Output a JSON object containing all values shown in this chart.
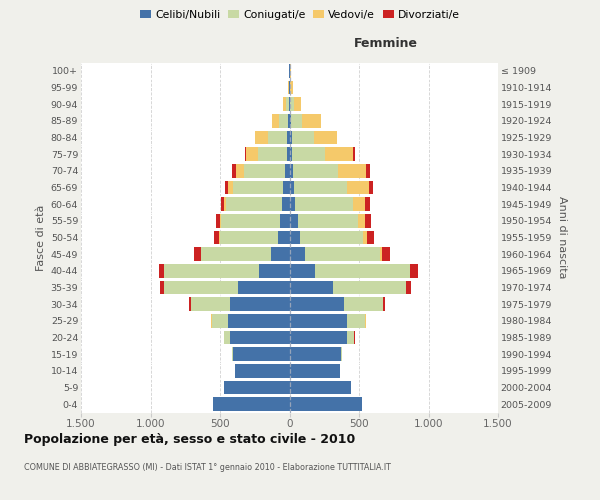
{
  "age_groups": [
    "0-4",
    "5-9",
    "10-14",
    "15-19",
    "20-24",
    "25-29",
    "30-34",
    "35-39",
    "40-44",
    "45-49",
    "50-54",
    "55-59",
    "60-64",
    "65-69",
    "70-74",
    "75-79",
    "80-84",
    "85-89",
    "90-94",
    "95-99",
    "100+"
  ],
  "birth_years": [
    "2005-2009",
    "2000-2004",
    "1995-1999",
    "1990-1994",
    "1985-1989",
    "1980-1984",
    "1975-1979",
    "1970-1974",
    "1965-1969",
    "1960-1964",
    "1955-1959",
    "1950-1954",
    "1945-1949",
    "1940-1944",
    "1935-1939",
    "1930-1934",
    "1925-1929",
    "1920-1924",
    "1915-1919",
    "1910-1914",
    "≤ 1909"
  ],
  "colors": {
    "celibe": "#4472a8",
    "coniugato": "#c8d9a4",
    "vedovo": "#f5c96a",
    "divorziato": "#cc2222"
  },
  "males": {
    "celibe": [
      550,
      470,
      390,
      410,
      430,
      440,
      430,
      370,
      220,
      130,
      85,
      65,
      55,
      45,
      30,
      20,
      15,
      12,
      5,
      2,
      2
    ],
    "coniugato": [
      0,
      0,
      5,
      5,
      40,
      120,
      280,
      530,
      680,
      505,
      415,
      425,
      405,
      365,
      295,
      210,
      140,
      65,
      20,
      5,
      2
    ],
    "vedovo": [
      0,
      0,
      0,
      0,
      2,
      2,
      2,
      2,
      2,
      3,
      5,
      8,
      10,
      30,
      60,
      80,
      90,
      50,
      20,
      5,
      2
    ],
    "divorziato": [
      0,
      0,
      0,
      0,
      2,
      5,
      10,
      30,
      40,
      50,
      35,
      30,
      25,
      25,
      30,
      12,
      5,
      2,
      0,
      0,
      0
    ]
  },
  "females": {
    "celibe": [
      520,
      440,
      360,
      370,
      415,
      415,
      390,
      315,
      185,
      115,
      72,
      58,
      42,
      32,
      25,
      20,
      20,
      10,
      5,
      2,
      2
    ],
    "coniugato": [
      0,
      0,
      5,
      10,
      50,
      130,
      280,
      520,
      680,
      535,
      455,
      435,
      415,
      385,
      325,
      235,
      155,
      80,
      25,
      5,
      2
    ],
    "vedovo": [
      0,
      0,
      0,
      0,
      2,
      2,
      5,
      5,
      5,
      12,
      28,
      52,
      85,
      155,
      200,
      205,
      165,
      135,
      55,
      15,
      5
    ],
    "divorziato": [
      0,
      0,
      0,
      0,
      2,
      5,
      10,
      32,
      52,
      62,
      52,
      42,
      37,
      32,
      30,
      12,
      5,
      2,
      0,
      0,
      0
    ]
  },
  "xlim": 1500,
  "xticks": [
    -1500,
    -1000,
    -500,
    0,
    500,
    1000,
    1500
  ],
  "xticklabels": [
    "1.500",
    "1.000",
    "500",
    "0",
    "500",
    "1.000",
    "1.500"
  ],
  "title": "Popolazione per età, sesso e stato civile - 2010",
  "subtitle": "COMUNE DI ABBIATEGRASSO (MI) - Dati ISTAT 1° gennaio 2010 - Elaborazione TUTTITALIA.IT",
  "ylabel_left": "Fasce di età",
  "ylabel_right": "Anni di nascita",
  "label_femmine": "Femmine",
  "legend_labels": [
    "Celibi/Nubili",
    "Coniugati/e",
    "Vedovi/e",
    "Divorziati/e"
  ],
  "bg_color": "#f0f0eb",
  "plot_bg_color": "#ffffff"
}
